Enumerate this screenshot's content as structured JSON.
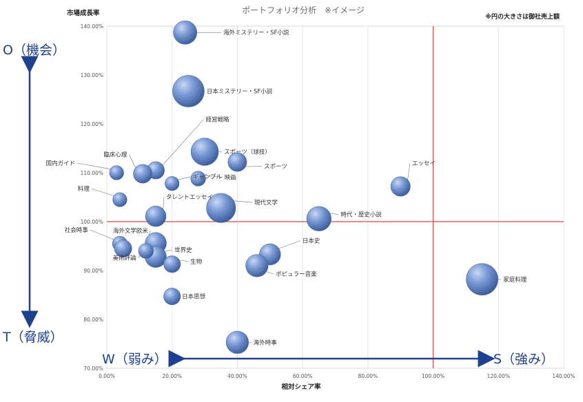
{
  "chart_data": {
    "type": "scatter",
    "title": "ポートフォリオ分析　※イメージ",
    "ylabel": "市場成長率",
    "xlabel": "相対シェア率",
    "note": "※円の大きさは御社売上額",
    "xlim": [
      0,
      1.4
    ],
    "ylim": [
      0.7,
      1.4
    ],
    "x_ticks": [
      "0.00%",
      "20.00%",
      "40.00%",
      "60.00%",
      "80.00%",
      "100.00%",
      "120.00%",
      "140.00%"
    ],
    "y_ticks": [
      "70.00%",
      "80.00%",
      "90.00%",
      "100.00%",
      "110.00%",
      "120.00%",
      "130.00%",
      "140.00%"
    ],
    "x_tick_values": [
      0,
      0.2,
      0.4,
      0.6,
      0.8,
      1.0,
      1.2,
      1.4
    ],
    "y_tick_values": [
      0.7,
      0.8,
      0.9,
      1.0,
      1.1,
      1.2,
      1.3,
      1.4
    ],
    "crosshair": {
      "x": 1.0,
      "y": 1.0
    },
    "grid": "vertical",
    "bubble_color": "#5a7fc4",
    "line_color": "#d64a4a",
    "axis_labels": {
      "top": "O（機会）",
      "bottom": "T（脅威）",
      "left": "W（弱み）",
      "right": "S（強み）"
    },
    "points": [
      {
        "label": "海外ミステリー・SF小説",
        "x": 0.24,
        "y": 1.387,
        "size": 0.55
      },
      {
        "label": "日本ミステリー・SF小説",
        "x": 0.25,
        "y": 1.267,
        "size": 1.0
      },
      {
        "label": "経営戦略",
        "x": 0.15,
        "y": 1.105,
        "size": 0.3
      },
      {
        "label": "スポーツ（球技）",
        "x": 0.3,
        "y": 1.143,
        "size": 0.75
      },
      {
        "label": "スポーツ",
        "x": 0.4,
        "y": 1.122,
        "size": 0.35
      },
      {
        "label": "国内ガイド",
        "x": 0.03,
        "y": 1.1,
        "size": 0.2
      },
      {
        "label": "臨床心理",
        "x": 0.11,
        "y": 1.098,
        "size": 0.35
      },
      {
        "label": "ギャンブル",
        "x": 0.2,
        "y": 1.078,
        "size": 0.2
      },
      {
        "label": "映画",
        "x": 0.28,
        "y": 1.088,
        "size": 0.22
      },
      {
        "label": "料理",
        "x": 0.04,
        "y": 1.045,
        "size": 0.2
      },
      {
        "label": "タレントエッセイ",
        "x": 0.15,
        "y": 1.011,
        "size": 0.42
      },
      {
        "label": "現代文学",
        "x": 0.35,
        "y": 1.028,
        "size": 0.85
      },
      {
        "label": "エッセイ",
        "x": 0.9,
        "y": 1.072,
        "size": 0.38
      },
      {
        "label": "時代・歴史小説",
        "x": 0.65,
        "y": 1.006,
        "size": 0.6
      },
      {
        "label": "社会時事",
        "x": 0.04,
        "y": 0.955,
        "size": 0.22
      },
      {
        "label": "海外文学欧米",
        "x": 0.15,
        "y": 0.956,
        "size": 0.45
      },
      {
        "label": "世界史",
        "x": 0.15,
        "y": 0.928,
        "size": 0.45
      },
      {
        "label": "美術評論",
        "x": 0.12,
        "y": 0.94,
        "size": 0.22
      },
      {
        "label": "美術評論",
        "x": 0.05,
        "y": 0.945,
        "size": 0.3
      },
      {
        "label": "生物",
        "x": 0.2,
        "y": 0.913,
        "size": 0.28
      },
      {
        "label": "日本史",
        "x": 0.5,
        "y": 0.933,
        "size": 0.45
      },
      {
        "label": "ポピュラー音楽",
        "x": 0.46,
        "y": 0.91,
        "size": 0.5
      },
      {
        "label": "家庭料理",
        "x": 1.15,
        "y": 0.882,
        "size": 1.0
      },
      {
        "label": "日本思想",
        "x": 0.2,
        "y": 0.847,
        "size": 0.28
      },
      {
        "label": "海外時事",
        "x": 0.4,
        "y": 0.753,
        "size": 0.5
      }
    ]
  }
}
